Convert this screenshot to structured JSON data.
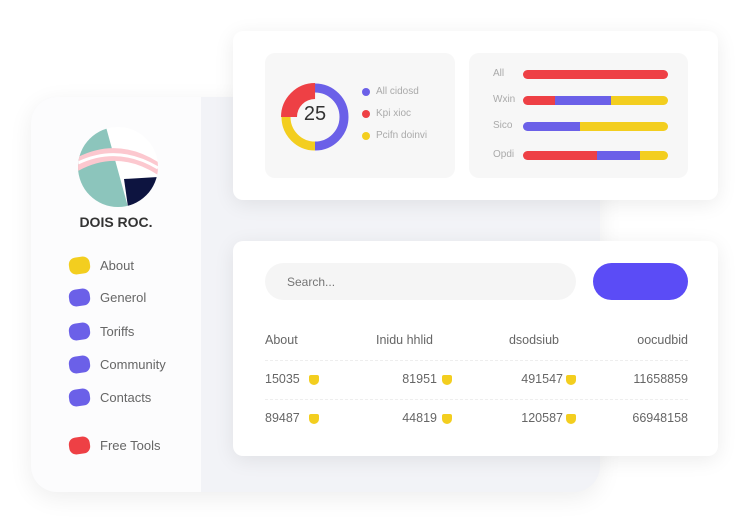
{
  "sidebar": {
    "brand": "DOIS ROC.",
    "items": [
      {
        "label": "About",
        "color": "#f3ce1f"
      },
      {
        "label": "Generol",
        "color": "#6b60e8"
      },
      {
        "label": "Toriffs",
        "color": "#6b60e8"
      },
      {
        "label": "Community",
        "color": "#6b60e8"
      },
      {
        "label": "Contacts",
        "color": "#6b60e8"
      },
      {
        "label": "Free Tools",
        "color": "#ee4045"
      }
    ]
  },
  "donut": {
    "value": "25",
    "segments": [
      {
        "label": "All cidosd",
        "color": "#6b60e8",
        "share": 0.5
      },
      {
        "label": "Kpi xioc",
        "color": "#ee4045",
        "share": 0.25
      },
      {
        "label": "Pcifn doinvi",
        "color": "#f3ce1f",
        "share": 0.25
      }
    ]
  },
  "bars": [
    {
      "label": "All",
      "segments": [
        {
          "color": "#ee4045",
          "share": 1
        }
      ]
    },
    {
      "label": "Wxin",
      "segments": [
        {
          "color": "#ee4045",
          "share": 0.22
        },
        {
          "color": "#6b60e8",
          "share": 0.39
        },
        {
          "color": "#f3ce1f",
          "share": 0.39
        }
      ]
    },
    {
      "label": "Sico",
      "segments": [
        {
          "color": "#6b60e8",
          "share": 0.39
        },
        {
          "color": "#f3ce1f",
          "share": 0.61
        }
      ]
    },
    {
      "label": "Opdi",
      "segments": [
        {
          "color": "#ee4045",
          "share": 0.51
        },
        {
          "color": "#6b60e8",
          "share": 0.3
        },
        {
          "color": "#f3ce1f",
          "share": 0.19
        }
      ]
    }
  ],
  "search": {
    "placeholder": "Search..."
  },
  "table": {
    "headers": [
      "About",
      "Inidu hhlid",
      "dsodsiub",
      "oocudbid"
    ],
    "rows": [
      [
        "15035",
        "81951",
        "491547",
        "11658859"
      ],
      [
        "89487",
        "44819",
        "120587",
        "66948158"
      ]
    ]
  }
}
